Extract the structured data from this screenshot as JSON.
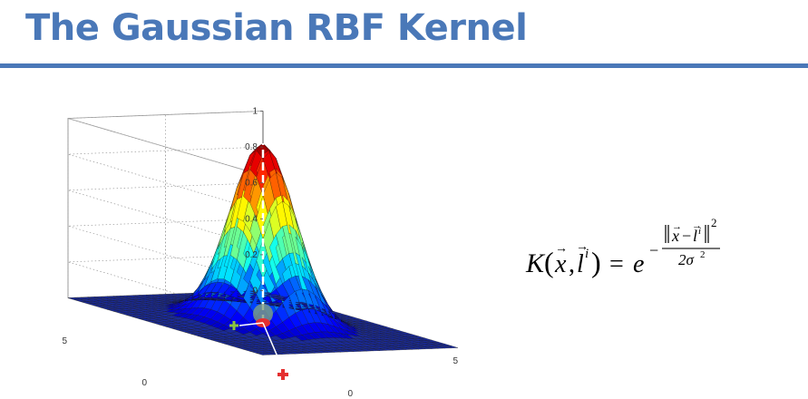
{
  "slide": {
    "title": "The Gaussian RBF Kernel"
  },
  "formula": {
    "lhs_K": "K",
    "lhs_x": "x",
    "lhs_l": "l",
    "lhs_i": "i",
    "equals": "=",
    "base_e": "e",
    "exp_sign": "−",
    "exp_num_x": "x",
    "exp_num_minus": "−",
    "exp_num_l": "l",
    "exp_num_i": "i",
    "exp_num_power": "2",
    "exp_den": "2σ",
    "exp_den_power": "2"
  },
  "chart_data": {
    "type": "surface",
    "function": "exp(-(x^2 + y^2) / (2*sigma^2))",
    "z_ticks": [
      "0",
      "0.2",
      "0.4",
      "0.6",
      "0.8",
      "1"
    ],
    "x_ticks": [
      "0",
      "5"
    ],
    "y_ticks": [
      "5",
      "0"
    ],
    "zlim": [
      0,
      1
    ],
    "xlim": [
      -5,
      5
    ],
    "ylim": [
      -5,
      5
    ],
    "grid": true,
    "colormap": "jet",
    "annotations": {
      "landmark_marker_color": "#e53030",
      "point_marker_color": "#e53030",
      "plus_marker_color": "#8cc63f",
      "arrow_color": "#ffffff"
    }
  },
  "colors": {
    "title": "#4a78b8",
    "rule": "#4a78b8"
  }
}
